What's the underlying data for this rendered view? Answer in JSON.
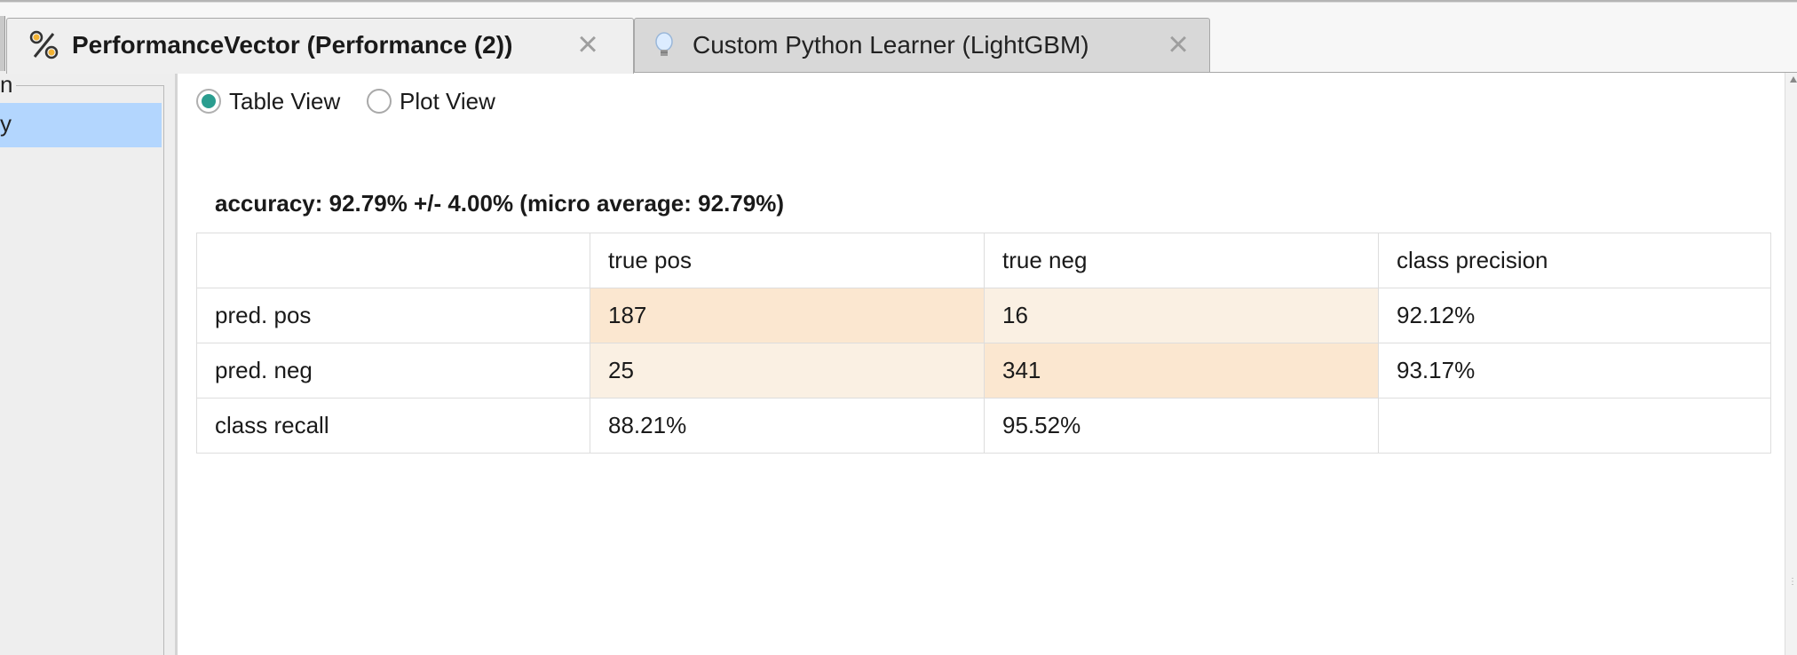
{
  "tabs": [
    {
      "label": "PerformanceVector (Performance (2))",
      "icon": "percent-icon",
      "active": true
    },
    {
      "label": "Custom Python Learner (LightGBM)",
      "icon": "lightbulb-icon",
      "active": false
    }
  ],
  "left_panel": {
    "group_label_partial": "n",
    "selected_item_partial": "y"
  },
  "view_toggle": {
    "options": [
      {
        "label": "Table View",
        "selected": true
      },
      {
        "label": "Plot View",
        "selected": false
      }
    ]
  },
  "performance": {
    "title": "accuracy: 92.79% +/- 4.00% (micro average: 92.79%)"
  },
  "confusion_matrix": {
    "headers": [
      "",
      "true pos",
      "true neg",
      "class precision"
    ],
    "rows": [
      {
        "label": "pred. pos",
        "cells": [
          "187",
          "16",
          "92.12%"
        ]
      },
      {
        "label": "pred. neg",
        "cells": [
          "25",
          "341",
          "93.17%"
        ]
      },
      {
        "label": "class recall",
        "cells": [
          "88.21%",
          "95.52%",
          ""
        ]
      }
    ]
  },
  "colors": {
    "radio_selected": "#2a9d8f",
    "selection_highlight": "#b3d6fe",
    "cell_diagonal": "#fbe7d0",
    "cell_offdiagonal": "#faf0e3"
  }
}
